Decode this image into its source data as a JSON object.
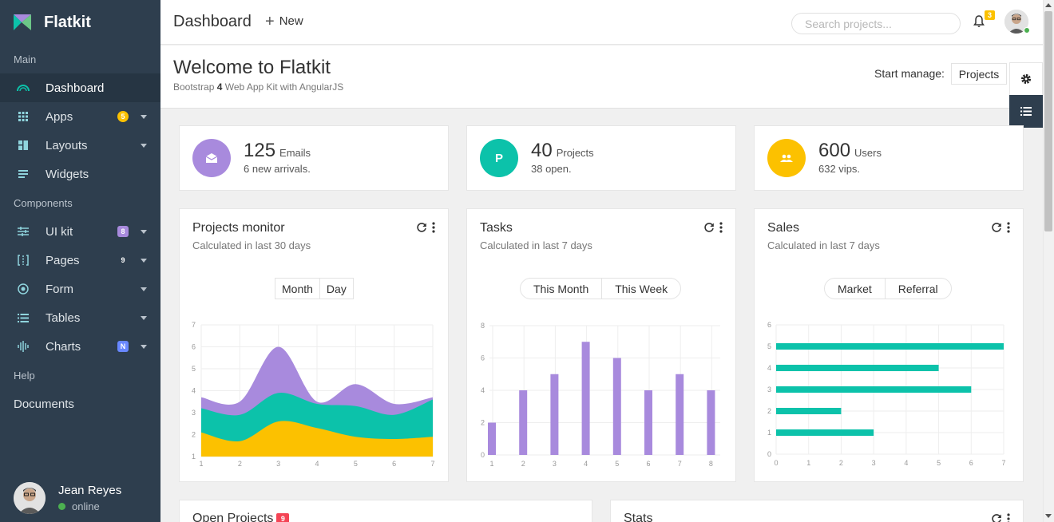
{
  "sidebar": {
    "brand": "Flatkit",
    "sections": {
      "main": "Main",
      "components": "Components",
      "help": "Help"
    },
    "main_items": [
      {
        "label": "Dashboard",
        "icon": "dashboard-icon",
        "active": true
      },
      {
        "label": "Apps",
        "icon": "apps-icon",
        "badge": "5",
        "badge_color": "#fcc100"
      },
      {
        "label": "Layouts",
        "icon": "layouts-icon"
      },
      {
        "label": "Widgets",
        "icon": "widgets-icon"
      }
    ],
    "component_items": [
      {
        "label": "UI kit",
        "icon": "tune-icon",
        "badge": "8",
        "badge_color": "#a88add"
      },
      {
        "label": "Pages",
        "icon": "pages-icon",
        "badge": "9",
        "badge_color": "transparent"
      },
      {
        "label": "Form",
        "icon": "radio-icon"
      },
      {
        "label": "Tables",
        "icon": "list-icon"
      },
      {
        "label": "Charts",
        "icon": "equalizer-icon",
        "badge": "N",
        "badge_color": "#6887ff"
      }
    ],
    "help_items": [
      {
        "label": "Documents"
      }
    ],
    "user": {
      "name": "Jean Reyes",
      "status": "online"
    }
  },
  "topbar": {
    "title": "Dashboard",
    "new_label": "New",
    "search_placeholder": "Search projects...",
    "notification_count": "3"
  },
  "welcome": {
    "title": "Welcome to Flatkit",
    "subtitle_pre": "Bootstrap ",
    "subtitle_bold": "4",
    "subtitle_post": " Web App Kit with AngularJS",
    "start_manage": "Start manage:",
    "projects_button": "Projects"
  },
  "stats": [
    {
      "value": "125",
      "label": "Emails",
      "sub": "6 new arrivals.",
      "color": "#a88add",
      "icon": "mail-icon"
    },
    {
      "value": "40",
      "label": "Projects",
      "sub": "38 open.",
      "color": "#0cc2aa",
      "icon": "P"
    },
    {
      "value": "600",
      "label": "Users",
      "sub": "632 vips.",
      "color": "#fcc100",
      "icon": "people-icon"
    }
  ],
  "cards": {
    "projects_monitor": {
      "title": "Projects monitor",
      "subtitle": "Calculated in last 30 days",
      "buttons": [
        "Month",
        "Day"
      ]
    },
    "tasks": {
      "title": "Tasks",
      "subtitle": "Calculated in last 7 days",
      "buttons": [
        "This Month",
        "This Week"
      ]
    },
    "sales": {
      "title": "Sales",
      "subtitle": "Calculated in last 7 days",
      "buttons": [
        "Market",
        "Referral"
      ]
    }
  },
  "bottom": {
    "open_projects": "Open Projects",
    "open_projects_badge": "9",
    "stats": "Stats"
  },
  "chart_data": [
    {
      "type": "area",
      "x": [
        1,
        2,
        3,
        4,
        5,
        6,
        7
      ],
      "ylim": [
        1,
        7
      ],
      "series": [
        {
          "values": [
            2.1,
            1.7,
            2.6,
            2.3,
            1.9,
            1.8,
            1.9
          ],
          "color": "#fcc100"
        },
        {
          "values": [
            3.2,
            2.9,
            3.9,
            3.4,
            3.3,
            2.9,
            3.6
          ],
          "color": "#0cc2aa"
        },
        {
          "values": [
            3.7,
            3.5,
            6.0,
            3.5,
            4.3,
            3.4,
            3.7
          ],
          "color": "#a88add"
        }
      ],
      "grid": true
    },
    {
      "type": "bar",
      "categories": [
        1,
        2,
        3,
        4,
        5,
        6,
        7,
        8
      ],
      "values": [
        2,
        4,
        5,
        7,
        6,
        4,
        5,
        4
      ],
      "ylim": [
        0,
        8
      ],
      "yticks": [
        0,
        2,
        4,
        6,
        8
      ],
      "color": "#a88add",
      "grid": true
    },
    {
      "type": "bar",
      "orientation": "horizontal",
      "categories": [
        1,
        2,
        3,
        4,
        5
      ],
      "values": [
        3,
        2,
        6,
        5,
        7
      ],
      "xlim": [
        0,
        7
      ],
      "ylim": [
        0,
        6
      ],
      "color": "#0cc2aa",
      "grid": true
    }
  ]
}
